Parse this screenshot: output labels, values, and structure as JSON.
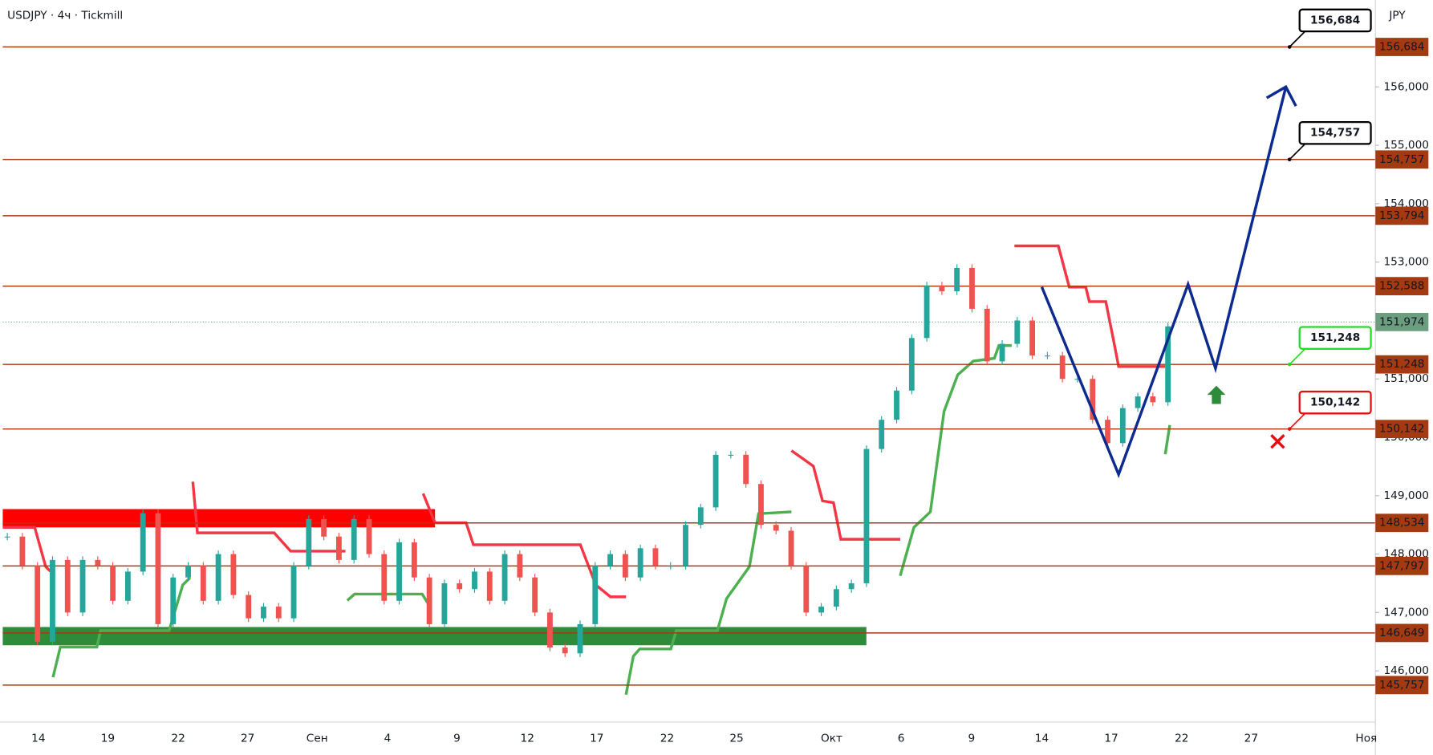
{
  "header": {
    "title": "USDJPY · 4ч · Tickmill",
    "currency": "JPY"
  },
  "chart_data": {
    "type": "candlestick",
    "x_axis_labels": [
      "14",
      "19",
      "22",
      "27",
      "Сен",
      "4",
      "9",
      "12",
      "17",
      "22",
      "25",
      "Окт",
      "6",
      "9",
      "14",
      "17",
      "22",
      "27",
      "Ноя"
    ],
    "values": [
      148.3,
      147.8,
      146.5,
      147.9,
      147.0,
      147.9,
      147.8,
      147.2,
      147.7,
      148.7,
      146.8,
      147.6,
      147.8,
      147.2,
      148.0,
      147.3,
      146.9,
      147.1,
      146.9,
      147.8,
      148.6,
      148.3,
      147.9,
      148.6,
      148.0,
      147.2,
      148.2,
      147.6,
      146.8,
      147.5,
      147.4,
      147.7,
      147.2,
      148.0,
      147.6,
      147.0,
      146.4,
      146.3,
      146.8,
      147.8,
      148.0,
      147.6,
      148.1,
      147.8,
      147.8,
      148.5,
      148.8,
      149.7,
      149.7,
      149.2,
      148.5,
      148.4,
      147.8,
      147.0,
      147.1,
      147.4,
      147.5,
      149.8,
      150.3,
      150.8,
      151.7,
      152.6,
      152.5,
      152.9,
      152.2,
      151.3,
      151.6,
      152.0,
      151.4,
      151.4,
      151.0,
      151.0,
      150.3,
      149.9,
      150.5,
      150.7,
      150.6,
      151.9
    ],
    "ylim": [
      145.124,
      157.487
    ],
    "yticks": [
      {
        "value": 146,
        "label": "146,000"
      },
      {
        "value": 147,
        "label": "147,000"
      },
      {
        "value": 148,
        "label": "148,000"
      },
      {
        "value": 149,
        "label": "149,000"
      },
      {
        "value": 150,
        "label": "150,000"
      },
      {
        "value": 151,
        "label": "151,000"
      },
      {
        "value": 153,
        "label": "153,000"
      },
      {
        "value": 154,
        "label": "154,000"
      },
      {
        "value": 155,
        "label": "155,000"
      },
      {
        "value": 156,
        "label": "156,000"
      }
    ],
    "levels": [
      156.684,
      154.757,
      153.794,
      152.588,
      151.248,
      150.142,
      148.534,
      147.797,
      146.649,
      145.757
    ],
    "level_labels": [
      "156,684",
      "154,757",
      "153,794",
      "152,588",
      "151,248",
      "150,142",
      "148,534",
      "147,797",
      "146,649",
      "145,757"
    ],
    "current_price": 151.974,
    "current_price_label": "151,974",
    "up_color": "#26a69a",
    "down_color": "#ef5350",
    "level_color": "#a33a12"
  }
}
